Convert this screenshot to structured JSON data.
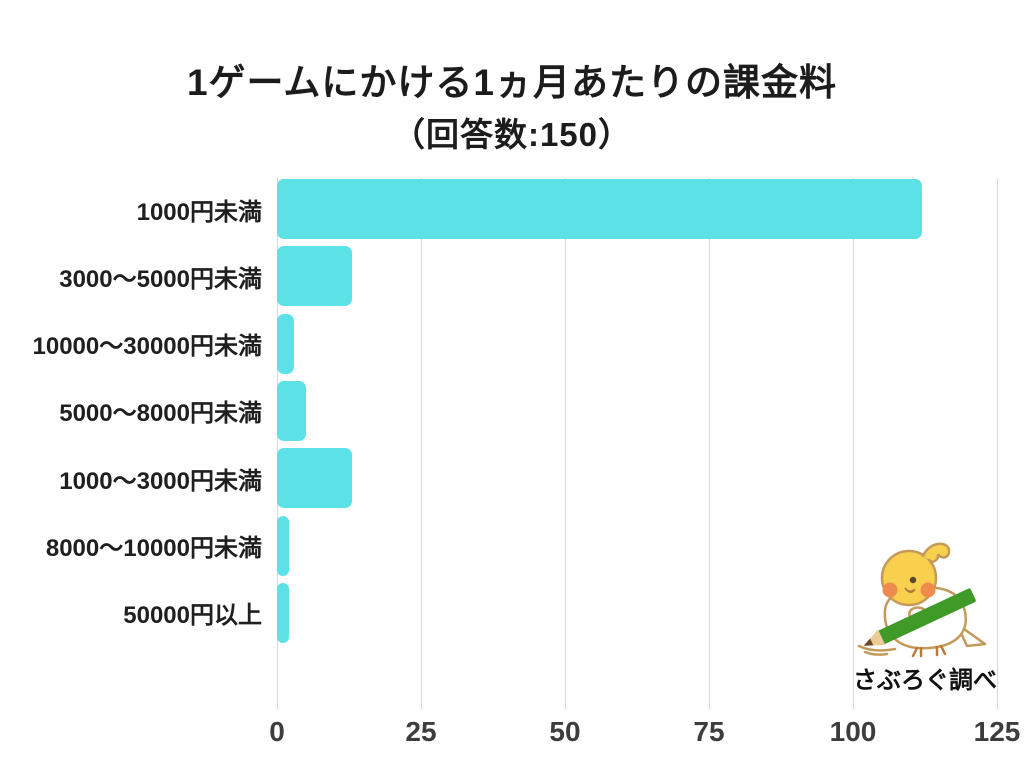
{
  "page": {
    "background": "#ffffff"
  },
  "header": {
    "title": "1ゲームにかける1ヵ月あたりの課金料",
    "subtitle": "（回答数:150）"
  },
  "chart_data": {
    "type": "bar",
    "orientation": "horizontal",
    "title": "1ゲームにかける1ヵ月あたりの課金料",
    "subtitle": "（回答数:150）",
    "categories": [
      "1000円未満",
      "3000〜5000円未満",
      "10000〜30000円未満",
      "5000〜8000円未満",
      "1000〜3000円未満",
      "8000〜10000円未満",
      "50000円以上"
    ],
    "values": [
      112,
      13,
      3,
      5,
      13,
      2,
      2
    ],
    "total_responses": 150,
    "xlabel": "",
    "ylabel": "",
    "xlim": [
      0,
      125
    ],
    "xticks": [
      0,
      25,
      50,
      75,
      100,
      125
    ],
    "grid": true,
    "legend": "none",
    "bar_color": "#5ce1e6",
    "gridline_color": "#d8d8d8",
    "category_label_color": "#1f1f1f",
    "tick_label_color": "#3d3d3d"
  },
  "footer": {
    "credit": "さぶろぐ調べ"
  },
  "mascot": {
    "description": "yellow cockatiel bird writing with green pencil",
    "body_color": "#ffffff",
    "head_color": "#f9d04e",
    "cheek_color": "#ef8a4d",
    "outline_color": "#c49a5a",
    "pencil_color": "#3f9a28"
  }
}
